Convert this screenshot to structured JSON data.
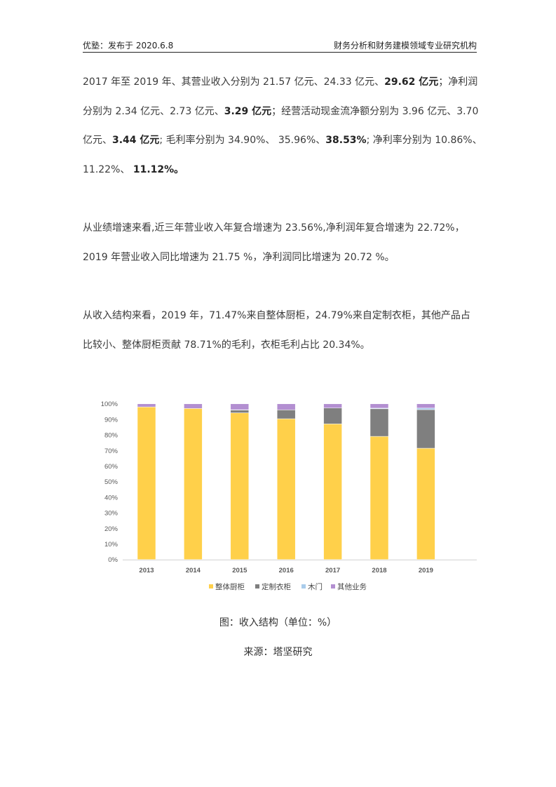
{
  "header": {
    "left": "优塾：发布于 2020.6.8",
    "right": "财务分析和财务建模领域专业研究机构"
  },
  "paragraphs": [
    {
      "lines": [
        [
          {
            "t": "2017 年至 2019 年、其营业收入分别为 21.57 亿元、24.33 亿元、"
          },
          {
            "t": "29.62 亿元",
            "b": true
          },
          {
            "t": "；净利润"
          }
        ],
        [
          {
            "t": "分别为 2.34 亿元、2.73 亿元、"
          },
          {
            "t": "3.29 亿元",
            "b": true
          },
          {
            "t": "；经营活动现金流净额分别为 3.96 亿元、3.70"
          }
        ],
        [
          {
            "t": "亿元、"
          },
          {
            "t": "3.44 亿元",
            "b": true
          },
          {
            "t": "; 毛利率分别为 34.90%、 35.96%、"
          },
          {
            "t": "38.53%",
            "b": true
          },
          {
            "t": "; 净利率分别为 10.86%、"
          }
        ],
        [
          {
            "t": "11.22%、 "
          },
          {
            "t": "11.12%。",
            "b": true
          }
        ]
      ]
    },
    {
      "lines": [
        [
          {
            "t": "从业绩增速来看,近三年营业收入年复合增速为 23.56%,净利润年复合增速为 22.72%，"
          }
        ],
        [
          {
            "t": "2019 年营业收入同比增速为 21.75 %，净利润同比增速为 20.72 %。"
          }
        ]
      ]
    },
    {
      "lines": [
        [
          {
            "t": "从收入结构来看，2019 年，71.47%来自整体厨柜，24.79%来自定制衣柜，其他产品占"
          }
        ],
        [
          {
            "t": "比较小、整体厨柜贡献 78.71%的毛利，衣柜毛利占比 20.34%。"
          }
        ]
      ]
    }
  ],
  "chart_data": {
    "type": "bar",
    "stacked": true,
    "categories": [
      "2013",
      "2014",
      "2015",
      "2016",
      "2017",
      "2018",
      "2019"
    ],
    "series": [
      {
        "name": "整体厨柜",
        "color": "#FFD04A",
        "values": [
          98.0,
          97.0,
          94.2,
          90.4,
          87.1,
          79.1,
          71.47
        ]
      },
      {
        "name": "定制衣柜",
        "color": "#7F7F7F",
        "values": [
          0,
          0,
          1.8,
          5.7,
          10.2,
          17.7,
          24.79
        ]
      },
      {
        "name": "木门",
        "color": "#A9CCEB",
        "values": [
          0,
          0,
          0.2,
          0,
          0,
          0.4,
          1.0
        ]
      },
      {
        "name": "其他业务",
        "color": "#B38FD1",
        "values": [
          2.0,
          3.0,
          3.8,
          3.9,
          2.7,
          2.8,
          2.74
        ]
      }
    ],
    "yticks": [
      "0%",
      "10%",
      "20%",
      "30%",
      "40%",
      "50%",
      "60%",
      "70%",
      "80%",
      "90%",
      "100%"
    ],
    "ylim": [
      0,
      100
    ],
    "grid": false,
    "legend": "bottom"
  },
  "caption": "图：收入结构（单位：%）",
  "source": "来源：塔坚研究"
}
